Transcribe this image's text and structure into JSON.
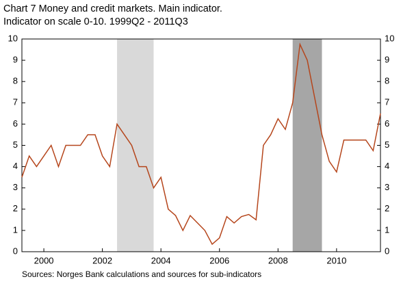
{
  "chart_data": {
    "type": "line",
    "title": "Chart 7 Money and credit markets. Main indicator.",
    "subtitle": "Indicator on scale 0-10. 1999Q2 - 2011Q3",
    "source": "Sources: Norges Bank calculations and sources for sub-indicators",
    "x": [
      1999.25,
      1999.5,
      1999.75,
      2000,
      2000.25,
      2000.5,
      2000.75,
      2001,
      2001.25,
      2001.5,
      2001.75,
      2002,
      2002.25,
      2002.5,
      2002.75,
      2003,
      2003.25,
      2003.5,
      2003.75,
      2004,
      2004.25,
      2004.5,
      2004.75,
      2005,
      2005.25,
      2005.5,
      2005.75,
      2006,
      2006.25,
      2006.5,
      2006.75,
      2007,
      2007.25,
      2007.5,
      2007.75,
      2008,
      2008.25,
      2008.5,
      2008.75,
      2009,
      2009.25,
      2009.5,
      2009.75,
      2010,
      2010.25,
      2010.5,
      2010.75,
      2011,
      2011.25,
      2011.5
    ],
    "values": [
      3.5,
      4.5,
      4,
      4.5,
      5,
      4,
      5,
      5,
      5,
      5.5,
      5.5,
      4.5,
      4,
      6,
      5.5,
      5,
      4,
      4,
      3,
      3.5,
      2,
      1.7,
      1,
      1.7,
      1.35,
      1,
      0.35,
      0.65,
      1.65,
      1.35,
      1.65,
      1.75,
      1.5,
      5,
      5.5,
      6.25,
      5.75,
      7,
      9.75,
      9,
      7.25,
      5.5,
      4.25,
      3.75,
      5.25,
      5.25,
      5.25,
      5.25,
      4.75,
      6.5
    ],
    "color": "#b5451b",
    "shaded_periods": [
      {
        "start": 2002.5,
        "end": 2003.75,
        "color": "#d9d9d9"
      },
      {
        "start": 2008.5,
        "end": 2009.5,
        "color": "#a6a6a6"
      }
    ],
    "xlim": [
      1999.25,
      2011.5
    ],
    "xticks": [
      2000,
      2002,
      2004,
      2006,
      2008,
      2010
    ],
    "ylim": [
      0,
      10
    ],
    "yticks": [
      0,
      1,
      2,
      3,
      4,
      5,
      6,
      7,
      8,
      9,
      10
    ],
    "y2lim": [
      0,
      10
    ],
    "y2ticks": [
      0,
      1,
      2,
      3,
      4,
      5,
      6,
      7,
      8,
      9,
      10
    ]
  }
}
